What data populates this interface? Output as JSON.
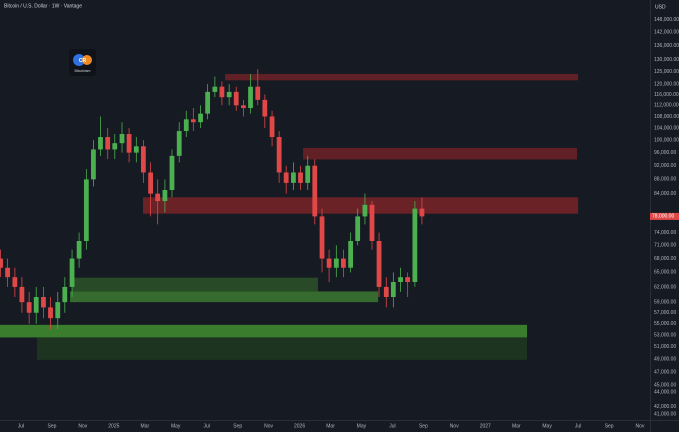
{
  "chart_data": {
    "type": "candlestick",
    "title": "Bitcoin / U.S. Dollar · 1W · Vantage",
    "currency": "USD",
    "watermark": {
      "icon_text": "CR",
      "name": "Bitcoinism"
    },
    "log_scale": true,
    "grid": false,
    "up_color": "#4caf50",
    "down_color": "#e04848",
    "x": [
      2024.39,
      2024.428,
      2024.467,
      2024.505,
      2024.544,
      2024.582,
      2024.621,
      2024.659,
      2024.698,
      2024.736,
      2024.775,
      2024.813,
      2024.852,
      2024.89,
      2024.928,
      2024.967,
      2025.005,
      2025.044,
      2025.082,
      2025.121,
      2025.159,
      2025.198,
      2025.236,
      2025.275,
      2025.313,
      2025.352,
      2025.39,
      2025.428,
      2025.467,
      2025.505,
      2025.544,
      2025.582,
      2025.621,
      2025.659,
      2025.698,
      2025.736,
      2025.775,
      2025.813,
      2025.852,
      2025.89,
      2025.928,
      2025.967,
      2026.005,
      2026.044,
      2026.082,
      2026.121,
      2026.159,
      2026.198,
      2026.236,
      2026.275,
      2026.313,
      2026.352,
      2026.39,
      2026.428,
      2026.467,
      2026.505,
      2026.544,
      2026.582,
      2026.621,
      2026.659
    ],
    "open": [
      68000,
      66000,
      64000,
      62000,
      59000,
      57000,
      60000,
      58000,
      56000,
      59000,
      62000,
      68000,
      72000,
      88000,
      97000,
      101000,
      97000,
      99000,
      102000,
      96000,
      98000,
      90000,
      84000,
      82000,
      85000,
      95000,
      103000,
      107000,
      106000,
      109000,
      117000,
      119000,
      115000,
      117000,
      112000,
      111000,
      119000,
      114000,
      108000,
      101000,
      90000,
      87000,
      90000,
      87000,
      92000,
      78000,
      68000,
      66000,
      68000,
      66000,
      72000,
      78000,
      81000,
      72000,
      62000,
      60000,
      63000,
      64000,
      63000,
      80000
    ],
    "high": [
      70000,
      68000,
      66000,
      64000,
      61000,
      62000,
      62000,
      60000,
      61000,
      64000,
      70000,
      74000,
      91000,
      100000,
      108000,
      104000,
      102000,
      106000,
      104000,
      101000,
      100000,
      93000,
      88000,
      88000,
      97000,
      106000,
      110000,
      111000,
      112000,
      120000,
      123000,
      121000,
      120000,
      119000,
      114000,
      124000,
      126000,
      116000,
      110000,
      103000,
      92000,
      93000,
      92000,
      95000,
      94000,
      80000,
      70000,
      71000,
      70000,
      74000,
      80000,
      84000,
      82000,
      74000,
      64000,
      65000,
      66000,
      65000,
      82000,
      83000
    ],
    "low": [
      64000,
      62000,
      60000,
      57000,
      55000,
      55000,
      56000,
      54000,
      54000,
      57000,
      60000,
      66000,
      70000,
      86000,
      95000,
      94000,
      94000,
      96000,
      93000,
      93000,
      87000,
      78000,
      76000,
      79000,
      83000,
      93000,
      101000,
      103000,
      104000,
      107000,
      115000,
      112000,
      112000,
      110000,
      108000,
      109000,
      112000,
      104000,
      98000,
      87000,
      84000,
      85000,
      85000,
      85000,
      76000,
      65000,
      63000,
      64000,
      64000,
      65000,
      71000,
      76000,
      70000,
      60000,
      58000,
      58000,
      61000,
      60000,
      62000,
      76000
    ],
    "close": [
      66000,
      64000,
      62000,
      59000,
      57000,
      60000,
      58000,
      56000,
      59000,
      62000,
      68000,
      72000,
      88000,
      97000,
      101000,
      97000,
      99000,
      102000,
      96000,
      98000,
      90000,
      84000,
      82000,
      85000,
      95000,
      103000,
      107000,
      106000,
      109000,
      117000,
      119000,
      115000,
      117000,
      112000,
      111000,
      119000,
      114000,
      108000,
      101000,
      90000,
      87000,
      90000,
      87000,
      92000,
      78000,
      68000,
      66000,
      68000,
      66000,
      72000,
      78000,
      81000,
      72000,
      62000,
      60000,
      63000,
      64000,
      63000,
      80000,
      78000
    ],
    "last_price": {
      "value": 78000,
      "label": "78,000.00"
    },
    "zones": [
      {
        "top": 124000,
        "bottom": 121500,
        "start": 2025.599,
        "end": 2027.5,
        "color": "#6e2226"
      },
      {
        "top": 97500,
        "bottom": 93900,
        "start": 2026.019,
        "end": 2027.494,
        "color": "#6e2226"
      },
      {
        "top": 83000,
        "bottom": 78700,
        "start": 2025.157,
        "end": 2027.5,
        "color": "#7a2428"
      },
      {
        "top": 63900,
        "bottom": 61100,
        "start": 2024.775,
        "end": 2026.099,
        "color": "#2b5427"
      },
      {
        "top": 61100,
        "bottom": 59000,
        "start": 2024.764,
        "end": 2026.423,
        "color": "#3c7a31"
      },
      {
        "top": 54800,
        "bottom": 52600,
        "start": 2024.387,
        "end": 2027.225,
        "color": "#3f8f2f"
      },
      {
        "top": 52600,
        "bottom": 48900,
        "start": 2024.586,
        "end": 2027.225,
        "color": "#1e3a20"
      }
    ],
    "xlim": [
      2024.387,
      2027.887
    ],
    "ylim": [
      40200,
      157800
    ],
    "xticks": [
      {
        "value": 2024.5,
        "label": "Jul"
      },
      {
        "value": 2024.667,
        "label": "Sep"
      },
      {
        "value": 2024.833,
        "label": "Nov"
      },
      {
        "value": 2025,
        "label": "2025"
      },
      {
        "value": 2025.167,
        "label": "Mar"
      },
      {
        "value": 2025.333,
        "label": "May"
      },
      {
        "value": 2025.5,
        "label": "Jul"
      },
      {
        "value": 2025.667,
        "label": "Sep"
      },
      {
        "value": 2025.833,
        "label": "Nov"
      },
      {
        "value": 2026,
        "label": "2026"
      },
      {
        "value": 2026.167,
        "label": "Mar"
      },
      {
        "value": 2026.333,
        "label": "May"
      },
      {
        "value": 2026.5,
        "label": "Jul"
      },
      {
        "value": 2026.667,
        "label": "Sep"
      },
      {
        "value": 2026.833,
        "label": "Nov"
      },
      {
        "value": 2027,
        "label": "2027"
      },
      {
        "value": 2027.167,
        "label": "Mar"
      },
      {
        "value": 2027.333,
        "label": "May"
      },
      {
        "value": 2027.5,
        "label": "Jul"
      },
      {
        "value": 2027.667,
        "label": "Sep"
      },
      {
        "value": 2027.833,
        "label": "Nov"
      }
    ],
    "yticks": [
      {
        "value": 148000,
        "label": "148,000.00"
      },
      {
        "value": 142000,
        "label": "142,000.00"
      },
      {
        "value": 136000,
        "label": "136,000.00"
      },
      {
        "value": 130000,
        "label": "130,000.00"
      },
      {
        "value": 125000,
        "label": "125,000.00"
      },
      {
        "value": 120000,
        "label": "120,000.00"
      },
      {
        "value": 116000,
        "label": "116,000.00"
      },
      {
        "value": 112000,
        "label": "112,000.00"
      },
      {
        "value": 108000,
        "label": "108,000.00"
      },
      {
        "value": 104000,
        "label": "104,000.00"
      },
      {
        "value": 100000,
        "label": "100,000.00"
      },
      {
        "value": 96000,
        "label": "96,000.00"
      },
      {
        "value": 92000,
        "label": "92,000.00"
      },
      {
        "value": 88000,
        "label": "88,000.00"
      },
      {
        "value": 84000,
        "label": "84,000.00"
      },
      {
        "value": 74000,
        "label": "74,000.00"
      },
      {
        "value": 71000,
        "label": "71,000.00"
      },
      {
        "value": 68000,
        "label": "68,000.00"
      },
      {
        "value": 65000,
        "label": "65,000.00"
      },
      {
        "value": 62000,
        "label": "62,000.00"
      },
      {
        "value": 59000,
        "label": "59,000.00"
      },
      {
        "value": 57000,
        "label": "57,000.00"
      },
      {
        "value": 55000,
        "label": "55,000.00"
      },
      {
        "value": 53000,
        "label": "53,000.00"
      },
      {
        "value": 51000,
        "label": "51,000.00"
      },
      {
        "value": 49000,
        "label": "49,000.00"
      },
      {
        "value": 47000,
        "label": "47,000.00"
      },
      {
        "value": 45000,
        "label": "45,000.00"
      },
      {
        "value": 44000,
        "label": "44,000.00"
      },
      {
        "value": 42000,
        "label": "42,000.00"
      },
      {
        "value": 41000,
        "label": "41,000.00"
      }
    ]
  }
}
